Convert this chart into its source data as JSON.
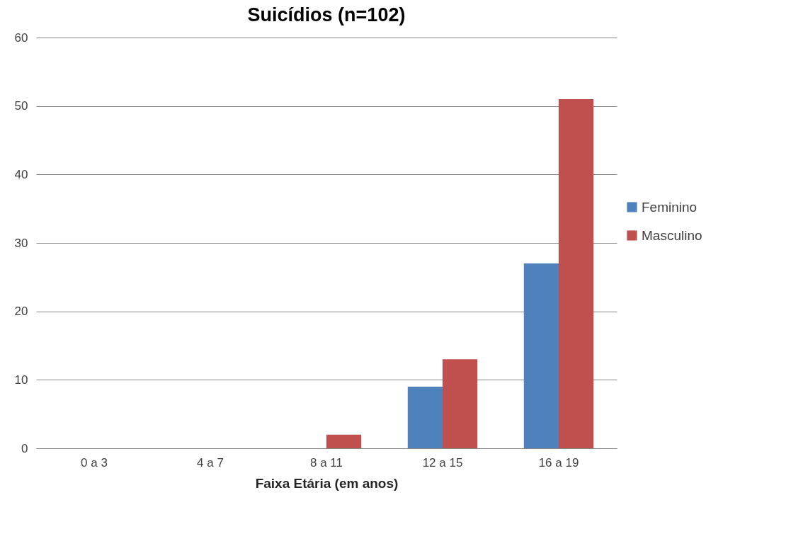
{
  "chart_data": {
    "type": "bar",
    "title": "Suicídios (n=102)",
    "xlabel": "Faixa Etária (em anos)",
    "categories": [
      "0 a 3",
      "4 a 7",
      "8 a 11",
      "12 a 15",
      "16 a 19"
    ],
    "series": [
      {
        "name": "Feminino",
        "color": "#4f81bd",
        "values": [
          0,
          0,
          0,
          9,
          27
        ]
      },
      {
        "name": "Masculino",
        "color": "#c0504d",
        "values": [
          0,
          0,
          2,
          13,
          51
        ]
      }
    ],
    "ylim": [
      0,
      60
    ],
    "yticks": [
      0,
      10,
      20,
      30,
      40,
      50,
      60
    ],
    "grid": "y",
    "legend": "right"
  }
}
